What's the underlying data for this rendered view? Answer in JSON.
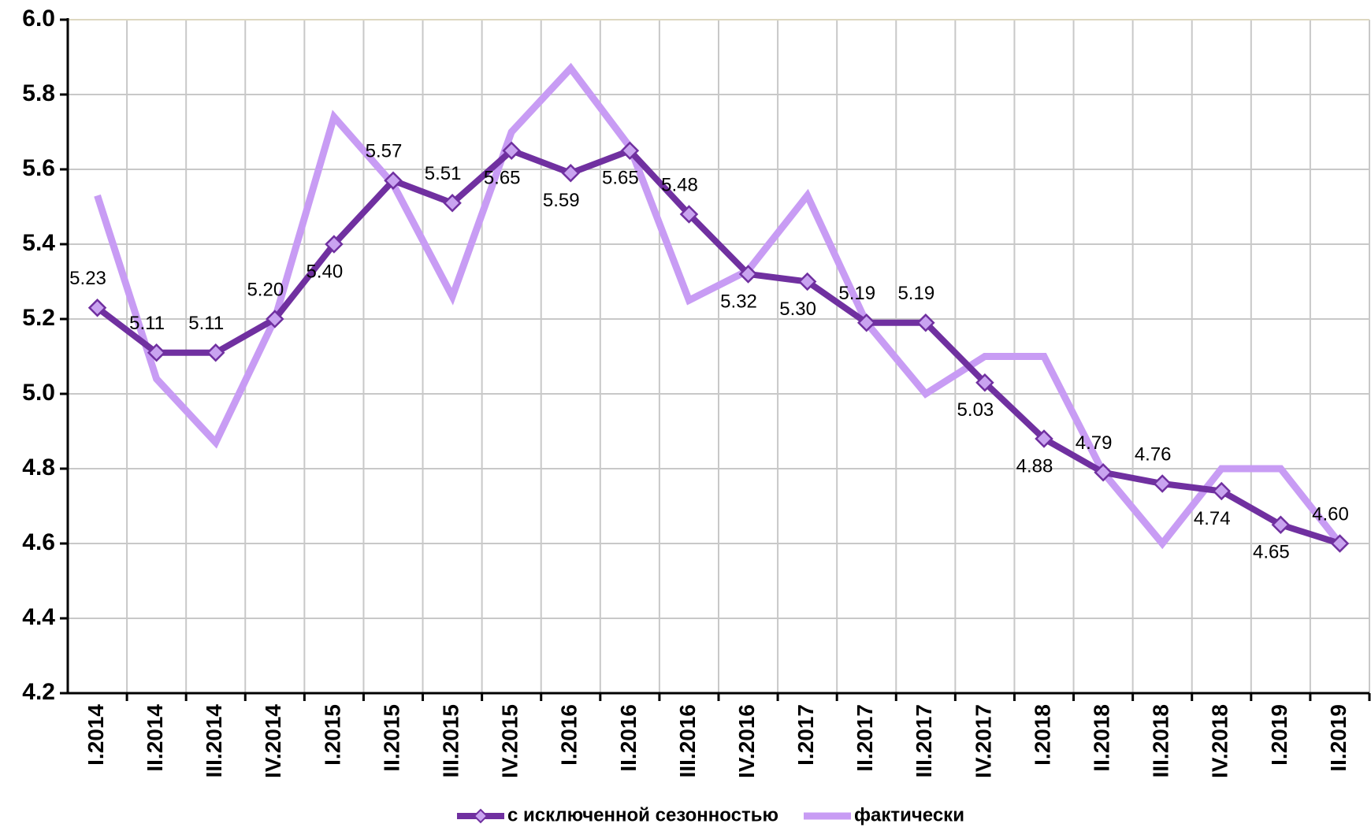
{
  "chart_data": {
    "type": "line",
    "categories": [
      "I.2014",
      "II.2014",
      "III.2014",
      "IV.2014",
      "I.2015",
      "II.2015",
      "III.2015",
      "IV.2015",
      "I.2016",
      "II.2016",
      "III.2016",
      "IV.2016",
      "I.2017",
      "II.2017",
      "III.2017",
      "IV.2017",
      "I.2018",
      "II.2018",
      "III.2018",
      "IV.2018",
      "I.2019",
      "II.2019"
    ],
    "series": [
      {
        "name": "с исключенной сезонностью",
        "color": "#7030a0",
        "marker_color": "#c9a3f0",
        "values": [
          5.23,
          5.11,
          5.11,
          5.2,
          5.4,
          5.57,
          5.51,
          5.65,
          5.59,
          5.65,
          5.48,
          5.32,
          5.3,
          5.19,
          5.19,
          5.03,
          4.88,
          4.79,
          4.76,
          4.74,
          4.65,
          4.6
        ],
        "value_labels": [
          "5.23",
          "5.11",
          "5.11",
          "5.20",
          "5.40",
          "5.57",
          "5.51",
          "5.65",
          "5.59",
          "5.65",
          "5.48",
          "5.32",
          "5.30",
          "5.19",
          "5.19",
          "5.03",
          "4.88",
          "4.79",
          "4.76",
          "4.74",
          "4.65",
          "4.60"
        ]
      },
      {
        "name": "фактически",
        "color": "#c89cf4",
        "values": [
          5.53,
          5.04,
          4.87,
          5.2,
          5.74,
          5.56,
          5.26,
          5.7,
          5.87,
          5.66,
          5.25,
          5.33,
          5.53,
          5.19,
          5.0,
          5.1,
          5.1,
          4.79,
          4.6,
          4.8,
          4.8,
          4.6
        ]
      }
    ],
    "ylim": [
      4.2,
      6.0
    ],
    "yticks": [
      4.2,
      4.4,
      4.6,
      4.8,
      {
        "value": 5.0,
        "label": "5.0"
      },
      5.2,
      5.4,
      5.6,
      5.8,
      {
        "value": 6.0,
        "label": "6.0"
      }
    ],
    "grid": true
  }
}
